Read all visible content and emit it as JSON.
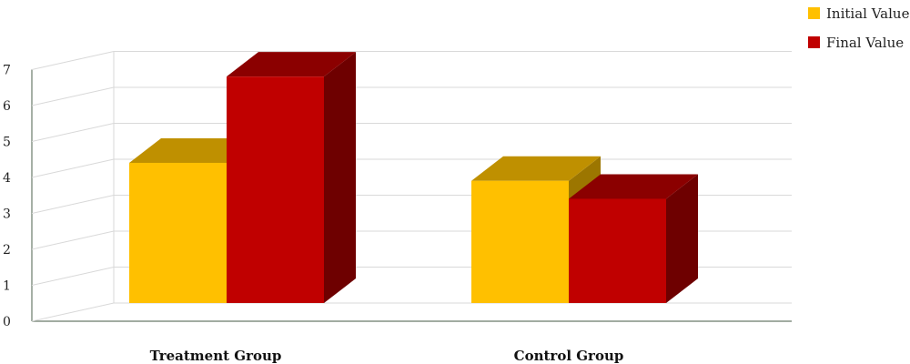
{
  "chart_data": {
    "type": "bar",
    "style": "3d-clustered-column",
    "categories": [
      "Treatment Group",
      "Control Group"
    ],
    "series": [
      {
        "name": "Initial Value",
        "values": [
          3.9,
          3.4
        ],
        "color": "#FFC000",
        "top_color": "#BF9000",
        "side_color": "#9C7600"
      },
      {
        "name": "Final Value",
        "values": [
          6.3,
          2.9
        ],
        "color": "#C00000",
        "top_color": "#8B0000",
        "side_color": "#6E0000"
      }
    ],
    "y_ticks": [
      "0",
      "1",
      "2",
      "3",
      "4",
      "5",
      "6",
      "7"
    ],
    "ylim": [
      0,
      7
    ],
    "grid": true,
    "legend_position": "top-right"
  }
}
